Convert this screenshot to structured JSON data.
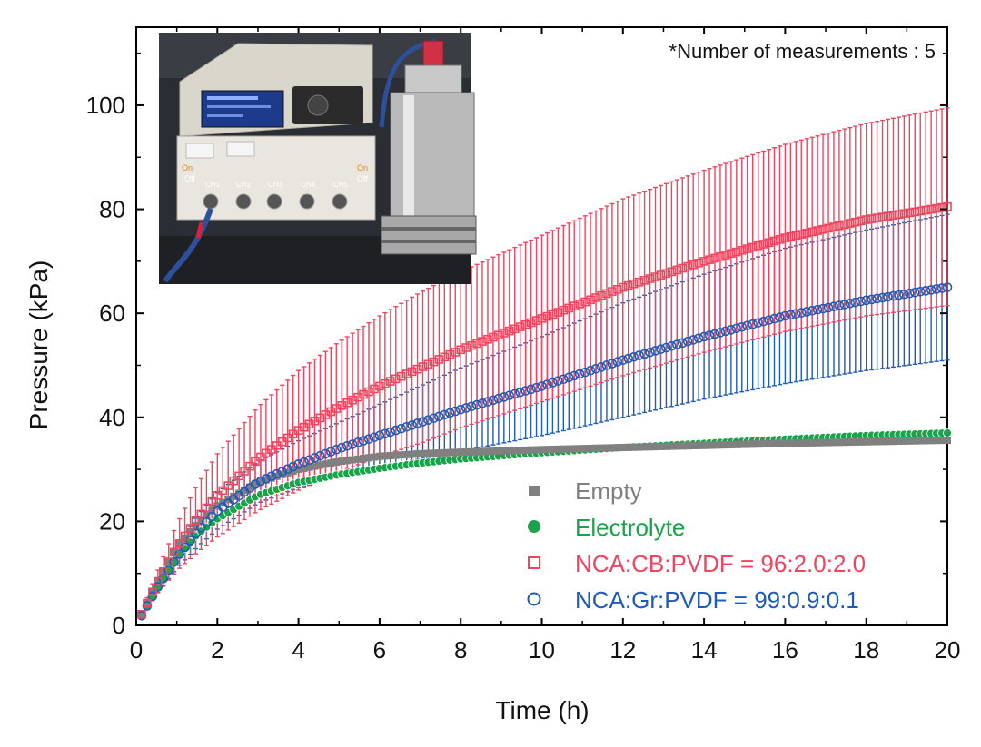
{
  "chart_data": {
    "type": "scatter",
    "title": "",
    "xlabel": "Time (h)",
    "ylabel": "Pressure (kPa)",
    "xlim": [
      0,
      20
    ],
    "ylim": [
      0,
      115
    ],
    "xticks": [
      0,
      2,
      4,
      6,
      8,
      10,
      12,
      14,
      16,
      18,
      20
    ],
    "yticks": [
      0,
      20,
      40,
      60,
      80,
      100
    ],
    "annotation": "*Number of measurements : 5",
    "legend_position": "bottom-right",
    "inset_photo": {
      "description": "pressure measurement device with cylindrical sensor cell",
      "labels": [
        "On",
        "Off",
        "CH1",
        "CH2",
        "CH3",
        "CH4",
        "CH5",
        "On",
        "Off"
      ]
    },
    "series": [
      {
        "name": "Empty",
        "color": "#808080",
        "marker": "filled-square",
        "x": [
          0,
          0.5,
          1,
          1.5,
          2,
          3,
          4,
          5,
          6,
          7,
          8,
          10,
          12,
          14,
          16,
          18,
          20
        ],
        "values": [
          0,
          8,
          15,
          19.5,
          23,
          27.5,
          30,
          31.5,
          32.5,
          33,
          33.3,
          33.8,
          34.2,
          34.6,
          35,
          35.3,
          35.6
        ],
        "error": []
      },
      {
        "name": "Electrolyte",
        "color": "#1aa34a",
        "marker": "filled-circle",
        "x": [
          0,
          0.5,
          1,
          1.5,
          2,
          3,
          4,
          5,
          6,
          7,
          8,
          10,
          12,
          14,
          16,
          18,
          20
        ],
        "values": [
          0,
          7,
          13,
          17.5,
          20.5,
          25,
          27.5,
          29,
          30.2,
          31.2,
          32,
          33.2,
          34.2,
          35,
          35.8,
          36.5,
          37
        ],
        "error": []
      },
      {
        "name": "NCA:CB:PVDF = 96:2.0:2.0",
        "color": "#f0455f",
        "marker": "open-square",
        "x": [
          0,
          0.5,
          1,
          1.5,
          2,
          3,
          4,
          5,
          6,
          7,
          8,
          10,
          12,
          14,
          16,
          18,
          20
        ],
        "values": [
          0,
          8,
          15,
          20.5,
          25,
          32,
          37.5,
          42,
          46,
          49.5,
          53,
          59,
          65,
          70,
          74.5,
          78,
          80.5
        ],
        "error": [
          0,
          2,
          4.5,
          6.5,
          8,
          10,
          11.5,
          12.5,
          13.5,
          14.5,
          15,
          16,
          17,
          17.5,
          18,
          18.5,
          19
        ]
      },
      {
        "name": "NCA:Gr:PVDF = 99:0.9:0.1",
        "color": "#1f5bb8",
        "marker": "open-circle",
        "x": [
          0,
          0.5,
          1,
          1.5,
          2,
          3,
          4,
          5,
          6,
          7,
          8,
          10,
          12,
          14,
          16,
          18,
          20
        ],
        "values": [
          0,
          7,
          13,
          18,
          22,
          27.5,
          31,
          34,
          36.5,
          39,
          41.5,
          46,
          51,
          55.5,
          59.5,
          62.5,
          65
        ],
        "error": [
          0,
          1,
          2,
          3,
          3.5,
          4,
          4.5,
          5,
          6,
          7,
          8,
          9.5,
          11,
          12,
          13,
          13.5,
          14
        ]
      }
    ]
  }
}
